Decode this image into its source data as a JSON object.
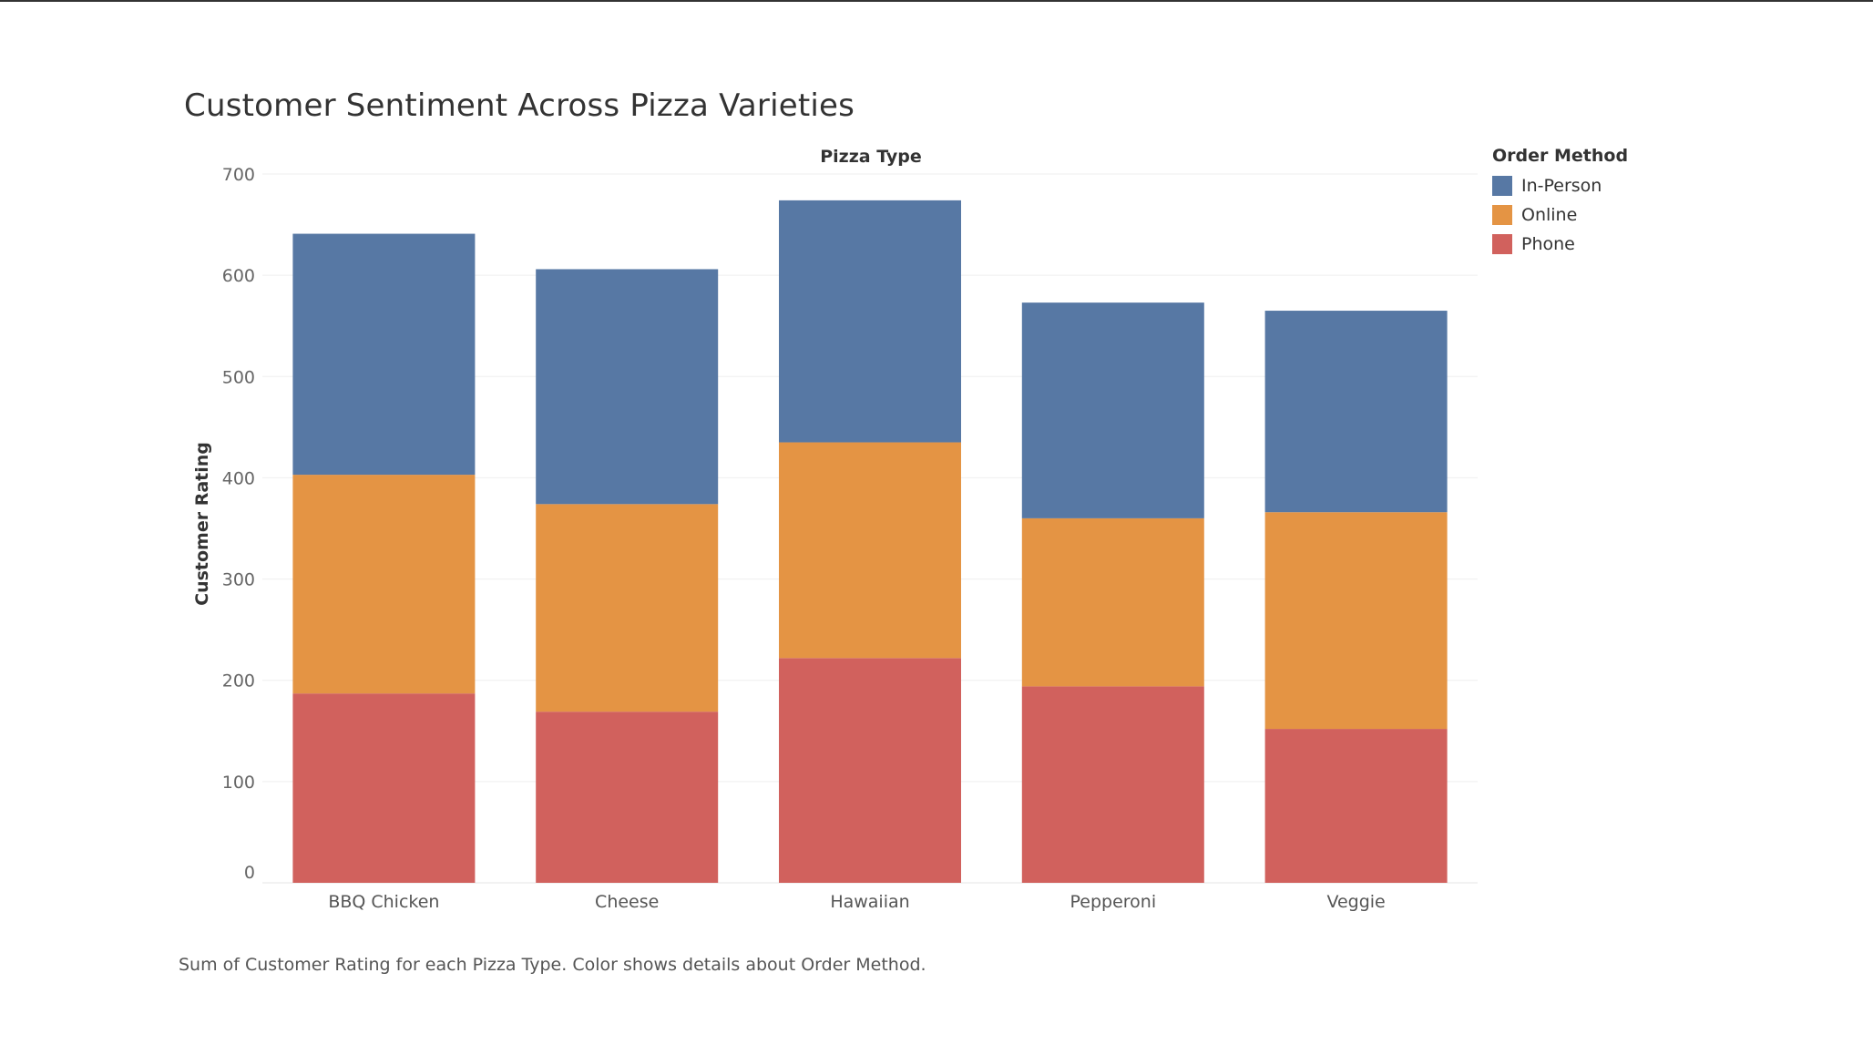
{
  "title": "Customer Sentiment Across Pizza Varieties",
  "caption": "Sum of Customer Rating for each Pizza Type.  Color shows details about Order Method.",
  "legend": {
    "title": "Order Method",
    "items": [
      {
        "label": "In-Person",
        "color": "#5778a4"
      },
      {
        "label": "Online",
        "color": "#e49444"
      },
      {
        "label": "Phone",
        "color": "#d1615d"
      }
    ]
  },
  "chart_data": {
    "type": "bar",
    "stacked": true,
    "title": "Customer Sentiment Across Pizza Varieties",
    "column_header": "Pizza Type",
    "xlabel": "",
    "ylabel": "Customer Rating",
    "ylim": [
      0,
      700
    ],
    "yticks": [
      0,
      100,
      200,
      300,
      400,
      500,
      600,
      700
    ],
    "grid": true,
    "legend_position": "top-right",
    "categories": [
      "BBQ Chicken",
      "Cheese",
      "Hawaiian",
      "Pepperoni",
      "Veggie"
    ],
    "series": [
      {
        "name": "Phone",
        "color": "#d1615d",
        "values": [
          187,
          169,
          222,
          194,
          152
        ]
      },
      {
        "name": "Online",
        "color": "#e49444",
        "values": [
          216,
          205,
          213,
          166,
          214
        ]
      },
      {
        "name": "In-Person",
        "color": "#5778a4",
        "values": [
          238,
          232,
          239,
          213,
          199
        ]
      }
    ]
  }
}
